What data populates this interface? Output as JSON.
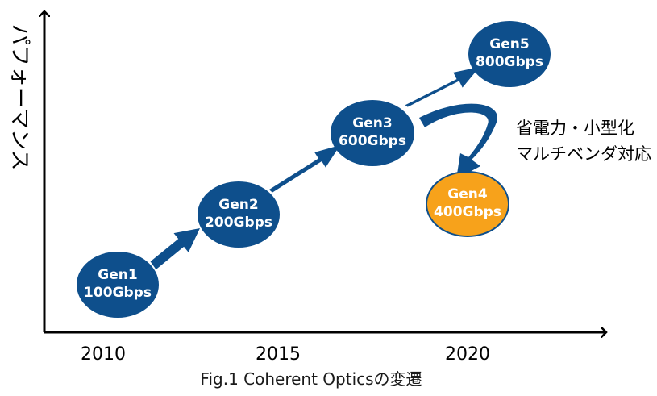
{
  "y_axis": {
    "label": "パフォーマンス"
  },
  "x_axis": {
    "ticks": [
      "2010",
      "2015",
      "2020"
    ]
  },
  "nodes": [
    {
      "gen": "Gen1",
      "rate": "100Gbps"
    },
    {
      "gen": "Gen2",
      "rate": "200Gbps"
    },
    {
      "gen": "Gen3",
      "rate": "600Gbps"
    },
    {
      "gen": "Gen4",
      "rate": "400Gbps"
    },
    {
      "gen": "Gen5",
      "rate": "800Gbps"
    }
  ],
  "annotation": {
    "line1": "省電力・小型化",
    "line2": "マルチベンダ対応"
  },
  "caption": "Fig.1 Coherent Opticsの変遷",
  "colors": {
    "primary": "#0e4f8c",
    "highlight": "#f7a21b",
    "axis": "#000000"
  }
}
